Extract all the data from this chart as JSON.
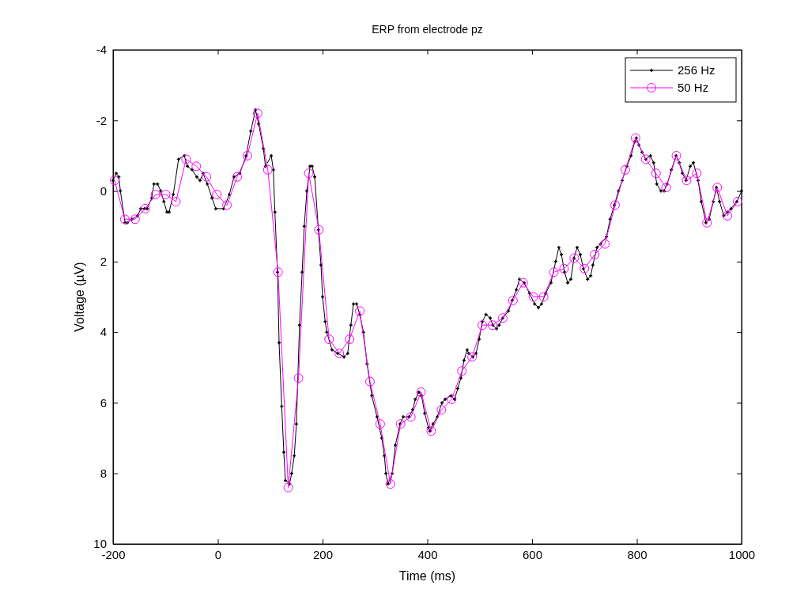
{
  "chart_data": {
    "type": "line",
    "title": "ERP from electrode pz",
    "xlabel": "Time (ms)",
    "ylabel": "Voltage (µV)",
    "xlim": [
      -200,
      1000
    ],
    "xticks": [
      -200,
      0,
      200,
      400,
      600,
      800,
      1000
    ],
    "ylim": [
      10,
      -4
    ],
    "yticks": [
      -4,
      -2,
      0,
      2,
      4,
      6,
      8,
      10
    ],
    "grid": false,
    "legend": "top right",
    "line_style": "solid",
    "series": [
      {
        "name": "256 Hz",
        "color": "#000000",
        "marker": "cross",
        "x": [
          -200,
          -194,
          -189,
          -186,
          -177,
          -173,
          -164,
          -153,
          -147,
          -140,
          -135,
          -126,
          -122,
          -115,
          -109,
          -103,
          -97,
          -93,
          -85,
          -75,
          -64,
          -58,
          -49,
          -40,
          -34,
          -28,
          -20,
          -11,
          -4,
          11,
          22,
          31,
          42,
          54,
          63,
          72,
          78,
          87,
          91,
          102,
          106,
          109,
          114,
          117,
          122,
          126,
          129,
          137,
          141,
          146,
          150,
          156,
          161,
          165,
          170,
          176,
          180,
          185,
          192,
          197,
          200,
          205,
          208,
          218,
          229,
          241,
          248,
          254,
          259,
          265,
          271,
          278,
          285,
          294,
          304,
          313,
          318,
          321,
          325,
          333,
          339,
          348,
          354,
          365,
          372,
          377,
          384,
          389,
          395,
          402,
          405,
          411,
          419,
          428,
          434,
          445,
          452,
          458,
          464,
          470,
          476,
          479,
          487,
          493,
          499,
          505,
          512,
          520,
          525,
          532,
          537,
          544,
          555,
          562,
          570,
          576,
          585,
          595,
          605,
          612,
          618,
          626,
          636,
          645,
          651,
          656,
          662,
          668,
          674,
          680,
          686,
          692,
          698,
          706,
          712,
          716,
          724,
          731,
          742,
          749,
          757,
          765,
          772,
          781,
          789,
          796,
          799,
          804,
          810,
          817,
          826,
          832,
          838,
          846,
          852,
          858,
          866,
          875,
          881,
          887,
          894,
          902,
          908,
          917,
          923,
          932,
          938,
          946,
          952,
          958,
          966,
          973,
          980,
          991,
          1000
        ],
        "values": [
          -0.3,
          -0.5,
          -0.4,
          0.0,
          0.9,
          0.9,
          0.8,
          0.7,
          0.5,
          0.5,
          0.5,
          0.2,
          -0.2,
          -0.2,
          0.0,
          0.3,
          0.6,
          0.6,
          0.1,
          -0.9,
          -1.0,
          -0.7,
          -0.6,
          -0.4,
          -0.3,
          -0.5,
          -0.2,
          0.2,
          0.5,
          0.5,
          0.1,
          -0.4,
          -0.5,
          -1.0,
          -1.7,
          -2.3,
          -1.9,
          -1.2,
          -0.7,
          -1.0,
          -0.6,
          0.6,
          2.3,
          4.3,
          6.1,
          7.4,
          8.2,
          8.3,
          8.0,
          7.5,
          6.6,
          3.8,
          2.3,
          1.0,
          0.0,
          -0.7,
          -0.7,
          -0.4,
          1.1,
          2.1,
          3.0,
          3.7,
          4.0,
          4.5,
          4.6,
          4.7,
          4.6,
          3.8,
          3.2,
          3.2,
          3.5,
          4.0,
          4.9,
          5.8,
          6.4,
          7.0,
          7.5,
          8.0,
          8.3,
          8.0,
          7.2,
          6.6,
          6.4,
          6.4,
          6.2,
          5.9,
          5.7,
          5.8,
          6.3,
          6.7,
          6.8,
          6.6,
          6.4,
          6.0,
          5.9,
          5.8,
          5.9,
          5.6,
          5.3,
          4.8,
          4.5,
          4.6,
          4.7,
          4.6,
          4.2,
          3.7,
          3.5,
          3.6,
          3.8,
          3.9,
          3.8,
          3.6,
          3.4,
          3.1,
          2.8,
          2.5,
          2.6,
          2.9,
          3.2,
          3.3,
          3.2,
          2.9,
          2.6,
          2.0,
          1.6,
          1.8,
          2.3,
          2.6,
          2.5,
          1.9,
          1.6,
          1.8,
          2.2,
          2.5,
          2.4,
          2.1,
          1.6,
          1.5,
          1.3,
          0.8,
          0.4,
          0.0,
          -0.3,
          -0.7,
          -1.0,
          -1.4,
          -1.5,
          -1.3,
          -1.1,
          -0.9,
          -1.0,
          -0.8,
          -0.2,
          0.0,
          0.0,
          -0.2,
          -0.6,
          -1.0,
          -0.8,
          -0.5,
          -0.3,
          -0.7,
          -0.8,
          -0.3,
          0.3,
          0.9,
          0.8,
          0.3,
          -0.1,
          0.3,
          0.7,
          0.6,
          0.5,
          0.3,
          0.0
        ]
      },
      {
        "name": "50 Hz",
        "color": "#ff00ff",
        "marker": "circle",
        "x": [
          -197,
          -177.5,
          -158,
          -138.5,
          -119,
          -99.5,
          -80,
          -60.5,
          -41,
          -21.5,
          -2,
          17.5,
          37,
          56.5,
          76,
          95.5,
          115,
          134.5,
          154,
          173.5,
          193,
          212.5,
          232,
          251.5,
          271,
          290.5,
          310,
          329.5,
          349,
          368.5,
          388,
          407.5,
          427,
          446.5,
          466,
          485.5,
          505,
          524.5,
          544,
          563.5,
          583,
          602.5,
          622,
          641.5,
          661,
          680.5,
          700,
          719.5,
          739,
          758.5,
          778,
          797.5,
          817,
          836.5,
          856,
          875.5,
          895,
          914.5,
          934,
          953.5,
          973,
          992.5
        ],
        "values": [
          -0.3,
          0.8,
          0.8,
          0.5,
          0.1,
          0.1,
          0.3,
          -0.9,
          -0.7,
          -0.4,
          0.1,
          0.4,
          -0.4,
          -1.0,
          -2.2,
          -0.6,
          2.3,
          8.4,
          5.3,
          -0.5,
          1.1,
          4.2,
          4.6,
          4.2,
          3.4,
          5.4,
          6.6,
          8.3,
          6.6,
          6.4,
          5.7,
          6.8,
          6.2,
          5.9,
          5.1,
          4.7,
          3.8,
          3.8,
          3.6,
          3.1,
          2.6,
          3.0,
          3.0,
          2.3,
          2.2,
          1.9,
          2.2,
          1.8,
          1.5,
          0.4,
          -0.6,
          -1.5,
          -0.9,
          -0.5,
          -0.1,
          -1.0,
          -0.3,
          -0.5,
          0.9,
          -0.1,
          0.7,
          0.3
        ]
      }
    ]
  }
}
